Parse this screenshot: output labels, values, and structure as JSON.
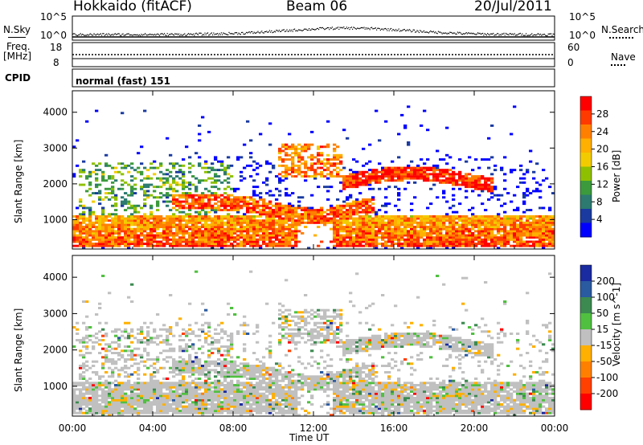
{
  "header": {
    "station": "Hokkaido (fitACF)",
    "beam": "Beam 06",
    "date": "20/Jul/2011"
  },
  "top_panels": {
    "nsky_label": "N.Sky",
    "nsky_ticks": [
      "10^5",
      "10^0"
    ],
    "nsearch_label": "N.Search",
    "nsearch_ticks": [
      "10^5",
      "10^0"
    ],
    "freq_label": "Freq.",
    "freq_unit": "[MHz]",
    "freq_ticks": [
      "18",
      "8"
    ],
    "nave_label": "Nave",
    "nave_ticks": [
      "60",
      "0"
    ],
    "cpid_label": "CPID",
    "cpid_value": "normal (fast) 151"
  },
  "chart_data": [
    {
      "type": "heatmap",
      "name": "power",
      "ylabel": "Slant Range [km]",
      "ylim": [
        180,
        4600
      ],
      "y_ticks": [
        "1000",
        "2000",
        "3000",
        "4000"
      ],
      "x_ticks": [
        "00:00",
        "04:00",
        "08:00",
        "12:00",
        "16:00",
        "20:00",
        "00:00"
      ],
      "colorbar": {
        "label": "Power [dB]",
        "ticks": [
          "28",
          "24",
          "20",
          "16",
          "12",
          "8",
          "4"
        ],
        "colors": [
          "#ff0000",
          "#ff3a00",
          "#ff8000",
          "#ffb000",
          "#f2cc00",
          "#8fc000",
          "#3c9a3c",
          "#2c7a70",
          "#1a3aa0",
          "#0000ff"
        ]
      },
      "echo_bands": [
        {
          "range_km": [
            300,
            1200
          ],
          "time_h": [
            0.3,
            24
          ],
          "level": "high"
        },
        {
          "range_km": [
            1200,
            1700
          ],
          "time_h": [
            6,
            12
          ],
          "level": "high"
        },
        {
          "range_km": [
            1800,
            2600
          ],
          "time_h": [
            14,
            20.5
          ],
          "level": "high"
        },
        {
          "range_km": [
            2200,
            3200
          ],
          "time_h": [
            10.5,
            13.5
          ],
          "level": "high"
        },
        {
          "range_km": [
            1000,
            2600
          ],
          "time_h": [
            0.5,
            8
          ],
          "level": "mid"
        }
      ]
    },
    {
      "type": "heatmap",
      "name": "velocity",
      "ylabel": "Slant Range [km]",
      "ylim": [
        180,
        4600
      ],
      "y_ticks": [
        "1000",
        "2000",
        "3000",
        "4000"
      ],
      "x_ticks": [
        "00:00",
        "04:00",
        "08:00",
        "12:00",
        "16:00",
        "20:00",
        "00:00"
      ],
      "xlabel": "Time UT",
      "colorbar": {
        "label": "Velocity [m s^-1]",
        "ticks": [
          "200",
          "100",
          "50",
          "15",
          "-15",
          "-50",
          "-100",
          "-200"
        ],
        "colors": [
          "#1a2aa0",
          "#2a5aa0",
          "#3c8a50",
          "#50c040",
          "#c0c0c0",
          "#ffb000",
          "#ff8000",
          "#ff4000",
          "#ff0000"
        ]
      }
    }
  ]
}
